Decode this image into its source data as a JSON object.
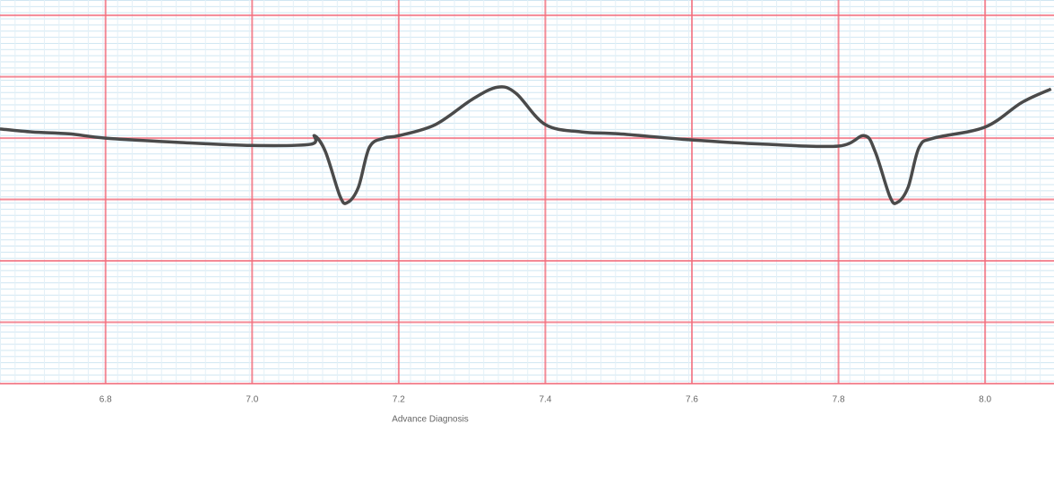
{
  "chart_data": {
    "type": "line",
    "x_label": "Advance Diagnosis",
    "x": [
      6.656,
      6.7,
      6.75,
      6.8,
      6.9,
      7.0,
      7.08,
      7.085,
      7.1,
      7.12,
      7.13,
      7.145,
      7.16,
      7.18,
      7.2,
      7.25,
      7.3,
      7.335,
      7.36,
      7.4,
      7.45,
      7.5,
      7.6,
      7.7,
      7.8,
      7.835,
      7.85,
      7.87,
      7.88,
      7.895,
      7.91,
      7.93,
      8.0,
      8.05,
      8.09
    ],
    "series": [
      {
        "color": "#4a4a4a",
        "values": [
          0.15,
          0.1,
          0.07,
          0,
          -0.07,
          -0.12,
          -0.1,
          0.04,
          -0.22,
          -0.95,
          -1.05,
          -0.8,
          -0.15,
          0,
          0.04,
          0.22,
          0.63,
          0.83,
          0.73,
          0.22,
          0.1,
          0.07,
          -0.03,
          -0.1,
          -0.13,
          0.04,
          -0.22,
          -0.95,
          -1.05,
          -0.8,
          -0.15,
          0,
          0.18,
          0.58,
          0.8
        ]
      }
    ],
    "xlim": [
      6.656,
      8.094
    ],
    "ylim": [
      -4,
      2.25
    ],
    "xticks": [
      6.8,
      {
        "value": 7,
        "label": "7.0"
      },
      7.2,
      7.4,
      7.6,
      7.8,
      {
        "value": 8,
        "label": "8.0"
      }
    ],
    "ygrid": [
      -4,
      -3,
      -2,
      -1,
      0,
      1,
      2
    ],
    "grid": true
  }
}
